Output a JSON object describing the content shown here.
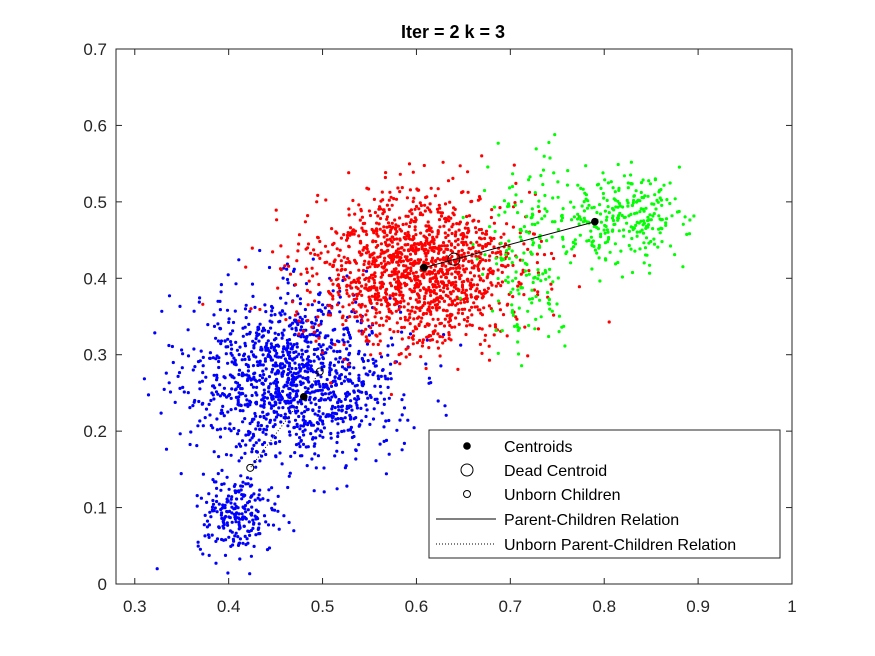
{
  "chart_data": {
    "type": "scatter",
    "title": "Iter = 2  k = 3",
    "xlabel": "",
    "ylabel": "",
    "xlim": [
      0.28,
      1.0
    ],
    "ylim": [
      0,
      0.7
    ],
    "xticks": [
      "0.3",
      "0.4",
      "0.5",
      "0.6",
      "0.7",
      "0.8",
      "0.9",
      "1"
    ],
    "yticks": [
      "0",
      "0.1",
      "0.2",
      "0.3",
      "0.4",
      "0.5",
      "0.6",
      "0.7"
    ],
    "grid": false,
    "legend_position": "bottom-right",
    "legend": [
      {
        "label": "Centroids",
        "marker": "filled-dot"
      },
      {
        "label": "Dead Centroid",
        "marker": "large-open-circle"
      },
      {
        "label": "Unborn Children",
        "marker": "small-open-circle"
      },
      {
        "label": "Parent-Children Relation",
        "marker": "solid-line"
      },
      {
        "label": "Unborn Parent-Children Relation",
        "marker": "dotted-line"
      }
    ],
    "clusters": [
      {
        "color": "#0000ff",
        "count": 1500,
        "blobs": [
          {
            "cx": 0.47,
            "cy": 0.27,
            "sx": 0.055,
            "sy": 0.055,
            "w": 0.85
          },
          {
            "cx": 0.41,
            "cy": 0.09,
            "sx": 0.022,
            "sy": 0.025,
            "w": 0.15
          }
        ]
      },
      {
        "color": "#ff0000",
        "count": 1500,
        "blobs": [
          {
            "cx": 0.6,
            "cy": 0.41,
            "sx": 0.055,
            "sy": 0.05,
            "w": 1.0
          }
        ]
      },
      {
        "color": "#00ff00",
        "count": 450,
        "blobs": [
          {
            "cx": 0.82,
            "cy": 0.48,
            "sx": 0.03,
            "sy": 0.03,
            "w": 0.6
          },
          {
            "cx": 0.72,
            "cy": 0.43,
            "sx": 0.025,
            "sy": 0.06,
            "w": 0.4
          }
        ]
      }
    ],
    "centroids": [
      {
        "x": 0.48,
        "y": 0.245
      },
      {
        "x": 0.608,
        "y": 0.414
      },
      {
        "x": 0.79,
        "y": 0.474
      }
    ],
    "dead_centroids": [
      {
        "x": 0.64,
        "y": 0.425
      }
    ],
    "unborn_children": [
      {
        "x": 0.423,
        "y": 0.152
      },
      {
        "x": 0.497,
        "y": 0.278
      }
    ],
    "parent_children_relations": [
      {
        "x1": 0.608,
        "y1": 0.414,
        "x2": 0.79,
        "y2": 0.474
      }
    ],
    "unborn_parent_children_relations": [
      {
        "x1": 0.48,
        "y1": 0.245,
        "x2": 0.423,
        "y2": 0.152
      },
      {
        "x1": 0.48,
        "y1": 0.245,
        "x2": 0.497,
        "y2": 0.278
      }
    ]
  }
}
